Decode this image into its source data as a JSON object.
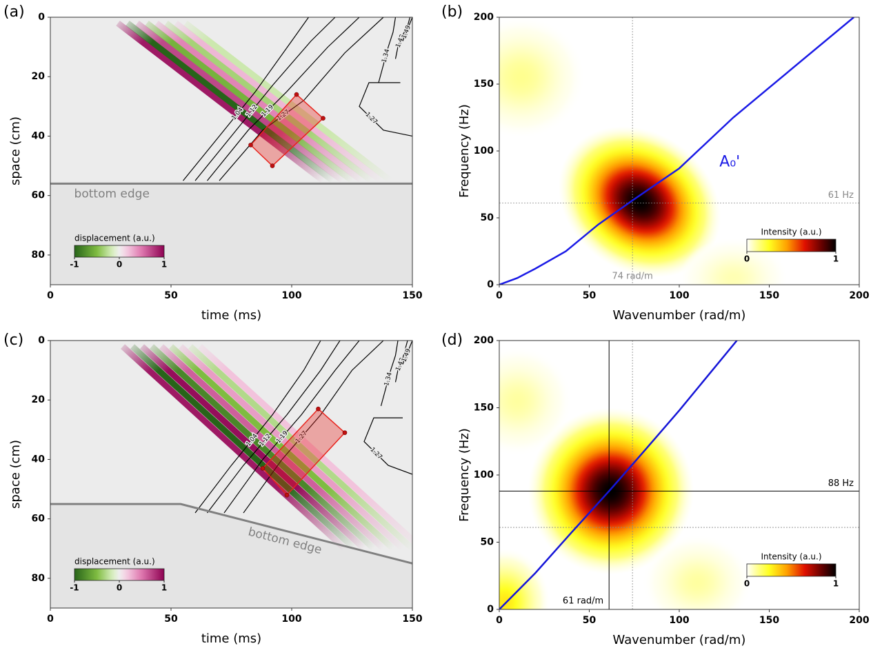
{
  "chart_data": [
    {
      "type": "wavefield",
      "label": "(a)",
      "xlabel": "time (ms)",
      "ylabel": "space (cm)",
      "xlim": [
        0,
        150
      ],
      "ylim": [
        0,
        90
      ],
      "xticks": [
        0,
        50,
        100,
        150
      ],
      "yticks": [
        0,
        20,
        40,
        60,
        80
      ],
      "y_inverted": true,
      "wavefronts": [
        {
          "t": [
            28,
            113
          ],
          "s": [
            2,
            55
          ],
          "amplitude": 0.9
        },
        {
          "t": [
            32,
            117
          ],
          "s": [
            2,
            55
          ],
          "amplitude": -1
        },
        {
          "t": [
            36,
            121
          ],
          "s": [
            2,
            55
          ],
          "amplitude": 0.7
        },
        {
          "t": [
            40,
            125
          ],
          "s": [
            2,
            55
          ],
          "amplitude": -0.55
        },
        {
          "t": [
            44,
            129
          ],
          "s": [
            2,
            55
          ],
          "amplitude": 0.45
        },
        {
          "t": [
            48,
            133
          ],
          "s": [
            2,
            55
          ],
          "amplitude": -0.35
        },
        {
          "t": [
            52,
            137
          ],
          "s": [
            2,
            55
          ],
          "amplitude": 0.25
        },
        {
          "t": [
            56,
            141
          ],
          "s": [
            2,
            55
          ],
          "amplitude": -0.2
        }
      ],
      "contours": [
        {
          "level": 1.04,
          "t": [
            55,
            70,
            85,
            100,
            107
          ],
          "s": [
            55,
            40,
            25,
            8,
            0
          ]
        },
        {
          "level": 1.12,
          "t": [
            60,
            75,
            92,
            108,
            118
          ],
          "s": [
            55,
            40,
            23,
            8,
            0
          ]
        },
        {
          "level": 1.19,
          "t": [
            65,
            82,
            98,
            115,
            128
          ],
          "s": [
            55,
            38,
            25,
            10,
            0
          ]
        },
        {
          "level": 1.27,
          "t": [
            70,
            88,
            105,
            122,
            138
          ],
          "s": [
            55,
            38,
            28,
            12,
            0
          ]
        },
        {
          "level": 1.34,
          "t": [
            136,
            138,
            140,
            142,
            143
          ],
          "s": [
            22,
            16,
            10,
            5,
            0
          ]
        },
        {
          "level": 1.42,
          "t": [
            143,
            144,
            146,
            148,
            149
          ],
          "s": [
            14,
            10,
            6,
            3,
            0
          ]
        },
        {
          "level": 1.49,
          "t": [
            146,
            147,
            148,
            149,
            150
          ],
          "s": [
            8,
            6,
            4,
            2,
            0
          ]
        },
        {
          "level": 1.27,
          "t": [
            150,
            138,
            128,
            132,
            145
          ],
          "s": [
            40,
            38,
            30,
            22,
            22
          ]
        }
      ],
      "roi": {
        "color": "#e8231c",
        "t": [
          102,
          113,
          92,
          83
        ],
        "s": [
          26,
          34,
          50,
          43
        ]
      },
      "bottom_edge": {
        "label": "bottom edge",
        "color": "#808080",
        "t": [
          0,
          150
        ],
        "s": [
          56,
          56
        ]
      },
      "colorbar": {
        "label": "displacement (a.u.)",
        "ticks": [
          -1,
          0,
          1
        ]
      }
    },
    {
      "type": "spectrum",
      "label": "(b)",
      "xlabel": "Wavenumber (rad/m)",
      "ylabel": "Frequency (Hz)",
      "xlim": [
        0,
        200
      ],
      "ylim": [
        0,
        200
      ],
      "xticks": [
        0,
        50,
        100,
        150,
        200
      ],
      "yticks": [
        0,
        50,
        100,
        150,
        200
      ],
      "blobs": [
        {
          "x": 78,
          "y": 62,
          "rx": 48,
          "ry": 52,
          "angle": 35,
          "value": 1
        },
        {
          "x": 12,
          "y": 155,
          "rx": 35,
          "ry": 45,
          "angle": 0,
          "value": 0.12
        },
        {
          "x": 130,
          "y": 5,
          "rx": 30,
          "ry": 30,
          "angle": 0,
          "value": 0.08
        }
      ],
      "series": [
        {
          "name": "A₀'",
          "color": "#1a1ae6",
          "x": [
            0,
            10,
            20,
            37,
            55,
            74,
            100,
            130,
            197
          ],
          "values": [
            0,
            5,
            12,
            25,
            45,
            63,
            87,
            125,
            200
          ]
        }
      ],
      "guides": [
        {
          "axis": "x",
          "value": 74,
          "label": "74 rad/m",
          "style": "dotted",
          "color": "#888888"
        },
        {
          "axis": "y",
          "value": 61,
          "label": "61 Hz",
          "style": "dotted",
          "color": "#888888"
        }
      ],
      "colorbar": {
        "label": "Intensity (a.u.)",
        "ticks": [
          0,
          1
        ]
      }
    },
    {
      "type": "wavefield",
      "label": "(c)",
      "xlabel": "time (ms)",
      "ylabel": "space (cm)",
      "xlim": [
        0,
        150
      ],
      "ylim": [
        0,
        90
      ],
      "xticks": [
        0,
        50,
        100,
        150
      ],
      "yticks": [
        0,
        20,
        40,
        60,
        80
      ],
      "y_inverted": true,
      "wavefronts": [
        {
          "t": [
            30,
            122
          ],
          "s": [
            2,
            70
          ],
          "amplitude": 0.9
        },
        {
          "t": [
            34,
            126
          ],
          "s": [
            2,
            70
          ],
          "amplitude": -1
        },
        {
          "t": [
            38,
            130
          ],
          "s": [
            2,
            70
          ],
          "amplitude": 0.95
        },
        {
          "t": [
            42,
            134
          ],
          "s": [
            2,
            70
          ],
          "amplitude": -0.8
        },
        {
          "t": [
            46,
            138
          ],
          "s": [
            2,
            70
          ],
          "amplitude": 0.6
        },
        {
          "t": [
            50,
            142
          ],
          "s": [
            2,
            70
          ],
          "amplitude": -0.5
        },
        {
          "t": [
            54,
            146
          ],
          "s": [
            2,
            70
          ],
          "amplitude": 0.35
        },
        {
          "t": [
            58,
            150
          ],
          "s": [
            2,
            70
          ],
          "amplitude": -0.3
        },
        {
          "t": [
            62,
            154
          ],
          "s": [
            2,
            70
          ],
          "amplitude": 0.2
        }
      ],
      "contours": [
        {
          "level": 1.04,
          "t": [
            60,
            75,
            92,
            105,
            112
          ],
          "s": [
            58,
            42,
            25,
            10,
            0
          ]
        },
        {
          "level": 1.12,
          "t": [
            65,
            80,
            98,
            112,
            120
          ],
          "s": [
            58,
            42,
            25,
            10,
            0
          ]
        },
        {
          "level": 1.19,
          "t": [
            72,
            88,
            104,
            118,
            128
          ],
          "s": [
            58,
            40,
            25,
            10,
            0
          ]
        },
        {
          "level": 1.27,
          "t": [
            80,
            96,
            112,
            125,
            138
          ],
          "s": [
            58,
            40,
            25,
            10,
            0
          ]
        },
        {
          "level": 1.34,
          "t": [
            137,
            139,
            141,
            143,
            144
          ],
          "s": [
            22,
            16,
            10,
            5,
            0
          ]
        },
        {
          "level": 1.42,
          "t": [
            143,
            144,
            146,
            147,
            148
          ],
          "s": [
            14,
            10,
            6,
            3,
            0
          ]
        },
        {
          "level": 1.49,
          "t": [
            146,
            147,
            148,
            149,
            150
          ],
          "s": [
            8,
            6,
            4,
            2,
            0
          ]
        },
        {
          "level": 1.27,
          "t": [
            150,
            140,
            130,
            134,
            146
          ],
          "s": [
            45,
            42,
            34,
            26,
            26
          ]
        }
      ],
      "roi": {
        "color": "#e8231c",
        "t": [
          111,
          122,
          98,
          88
        ],
        "s": [
          23,
          31,
          52,
          43
        ]
      },
      "bottom_edge": {
        "label": "bottom edge",
        "color": "#808080",
        "t": [
          0,
          54,
          150
        ],
        "s": [
          55,
          55,
          75
        ]
      },
      "colorbar": {
        "label": "displacement (a.u.)",
        "ticks": [
          -1,
          0,
          1
        ]
      }
    },
    {
      "type": "spectrum",
      "label": "(d)",
      "xlabel": "Wavenumber (rad/m)",
      "ylabel": "Frequency (Hz)",
      "xlim": [
        0,
        200
      ],
      "ylim": [
        0,
        200
      ],
      "xticks": [
        0,
        50,
        100,
        150,
        200
      ],
      "yticks": [
        0,
        50,
        100,
        150,
        200
      ],
      "blobs": [
        {
          "x": 62,
          "y": 88,
          "rx": 46,
          "ry": 62,
          "angle": 15,
          "value": 1
        },
        {
          "x": 10,
          "y": 155,
          "rx": 30,
          "ry": 40,
          "angle": 0,
          "value": 0.1
        },
        {
          "x": 110,
          "y": 20,
          "rx": 30,
          "ry": 35,
          "angle": 0,
          "value": 0.1
        },
        {
          "x": 3,
          "y": 5,
          "rx": 25,
          "ry": 40,
          "angle": 0,
          "value": 0.3
        }
      ],
      "series": [
        {
          "color": "#1515d8",
          "x": [
            0,
            20,
            40,
            61,
            80,
            100,
            132
          ],
          "values": [
            0,
            27,
            57,
            88,
            117,
            148,
            200
          ]
        }
      ],
      "guides": [
        {
          "axis": "x",
          "value": 74,
          "style": "dotted",
          "color": "#888888"
        },
        {
          "axis": "y",
          "value": 61,
          "style": "dotted",
          "color": "#888888"
        },
        {
          "axis": "x",
          "value": 61,
          "label": "61 rad/m",
          "style": "solid",
          "color": "#000000"
        },
        {
          "axis": "y",
          "value": 88,
          "label": "88 Hz",
          "style": "solid",
          "color": "#000000"
        }
      ],
      "colorbar": {
        "label": "Intensity (a.u.)",
        "ticks": [
          0,
          1
        ]
      }
    }
  ]
}
